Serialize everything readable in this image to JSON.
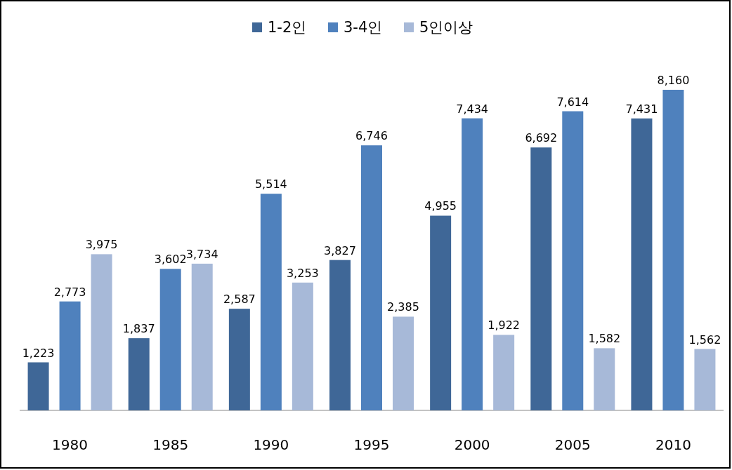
{
  "chart_data": {
    "type": "bar",
    "categories": [
      "1980",
      "1985",
      "1990",
      "1995",
      "2000",
      "2005",
      "2010"
    ],
    "series": [
      {
        "name": "1-2인",
        "color": "#3f6797",
        "values": [
          1223,
          1837,
          2587,
          3827,
          4955,
          6692,
          7431
        ],
        "value_labels": [
          "1,223",
          "1,837",
          "2,587",
          "3,827",
          "4,955",
          "6,692",
          "7,431"
        ]
      },
      {
        "name": "3-4인",
        "color": "#4f81bd",
        "values": [
          2773,
          3602,
          5514,
          6746,
          7434,
          7614,
          8160
        ],
        "value_labels": [
          "2,773",
          "3,602",
          "5,514",
          "6,746",
          "7,434",
          "7,614",
          "8,160"
        ]
      },
      {
        "name": "5인이상",
        "color": "#a7b9d8",
        "values": [
          3975,
          3734,
          3253,
          2385,
          1922,
          1582,
          1562
        ],
        "value_labels": [
          "3,975",
          "3,734",
          "3,253",
          "2,385",
          "1,922",
          "1,582",
          "1,562"
        ]
      }
    ],
    "legend": "top"
  }
}
